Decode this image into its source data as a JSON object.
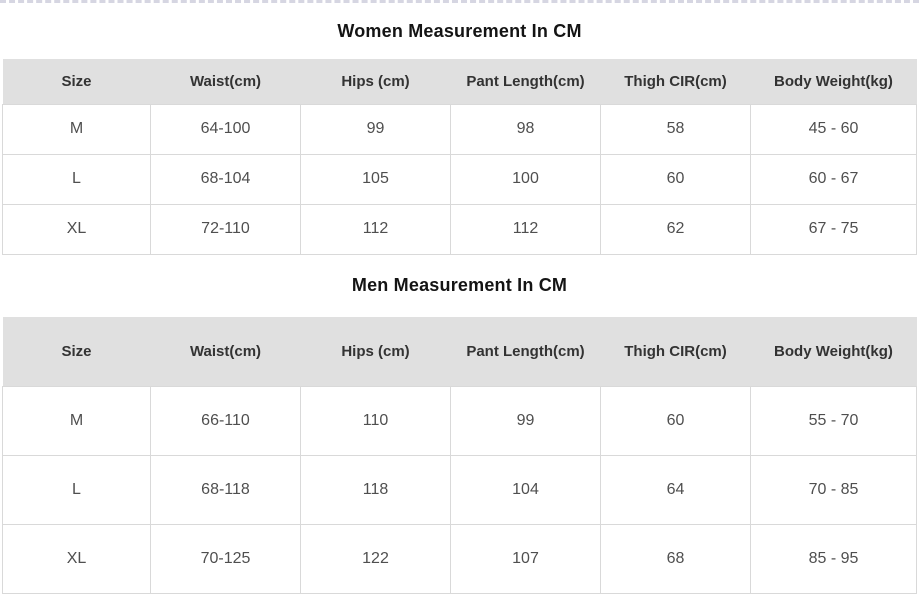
{
  "colors": {
    "page_background": "#ffffff",
    "top_dashed_border": "#d6d6e2",
    "header_row_background": "#e0e0e0",
    "cell_border": "#d9d9d9",
    "title_text": "#141414",
    "header_text": "#333333",
    "cell_text": "#4f4f4f"
  },
  "tables": [
    {
      "title": "Women Measurement In CM",
      "columns": [
        "Size",
        "Waist(cm)",
        "Hips (cm)",
        "Pant Length(cm)",
        "Thigh CIR(cm)",
        "Body Weight(kg)"
      ],
      "rows": [
        [
          "M",
          "64-100",
          "99",
          "98",
          "58",
          "45 - 60"
        ],
        [
          "L",
          "68-104",
          "105",
          "100",
          "60",
          "60 - 67"
        ],
        [
          "XL",
          "72-110",
          "112",
          "112",
          "62",
          "67 - 75"
        ]
      ]
    },
    {
      "title": "Men Measurement In CM",
      "columns": [
        "Size",
        "Waist(cm)",
        "Hips (cm)",
        "Pant Length(cm)",
        "Thigh CIR(cm)",
        "Body Weight(kg)"
      ],
      "rows": [
        [
          "M",
          "66-110",
          "110",
          "99",
          "60",
          "55 - 70"
        ],
        [
          "L",
          "68-118",
          "118",
          "104",
          "64",
          "70 - 85"
        ],
        [
          "XL",
          "70-125",
          "122",
          "107",
          "68",
          "85 - 95"
        ]
      ]
    }
  ]
}
